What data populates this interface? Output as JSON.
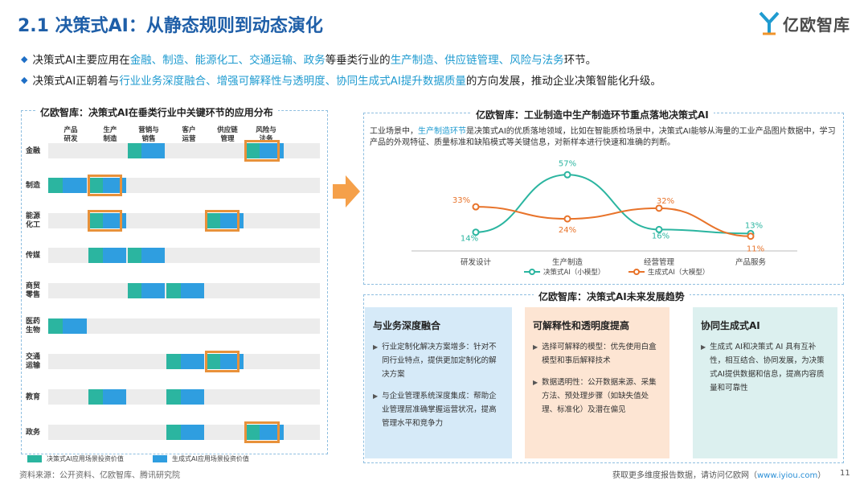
{
  "title": "2.1 决策式AI：从静态规则到动态演化",
  "logo": {
    "text": "亿欧智库"
  },
  "bullets": [
    {
      "parts": [
        {
          "t": "决策式AI主要应用在",
          "hl": false
        },
        {
          "t": "金融、制造、能源化工、交通运输、政务",
          "hl": true
        },
        {
          "t": "等垂类行业的",
          "hl": false
        },
        {
          "t": "生产制造、供应链管理、风险与法务",
          "hl": true
        },
        {
          "t": "环节。",
          "hl": false
        }
      ]
    },
    {
      "parts": [
        {
          "t": "决策式AI正朝着与",
          "hl": false
        },
        {
          "t": "行业业务深度融合、增强可解释性与透明度、协同生成式AI提升数据质量",
          "hl": true
        },
        {
          "t": "的方向发展，推动企业决策智能化升级。",
          "hl": false
        }
      ]
    }
  ],
  "left_panel": {
    "title": "亿欧智库：决策式AI在垂类行业中关键环节的应用分布",
    "columns": [
      "产品\n研发",
      "生产\n制造",
      "营销与\n销售",
      "客户\n运营",
      "供应链\n管理",
      "风险与\n法务"
    ],
    "rows": [
      {
        "label": "金融",
        "cells": [
          "none",
          "none",
          "both",
          "none",
          "none",
          "both"
        ],
        "highlight": [
          5
        ]
      },
      {
        "label": "制造",
        "cells": [
          "both",
          "both",
          "none",
          "none",
          "none",
          "none"
        ],
        "highlight": [
          1
        ]
      },
      {
        "label": "能源\n化工",
        "cells": [
          "none",
          "both",
          "none",
          "none",
          "both",
          "none"
        ],
        "highlight": [
          1,
          4
        ]
      },
      {
        "label": "传媒",
        "cells": [
          "none",
          "both",
          "both",
          "none",
          "none",
          "none"
        ],
        "highlight": []
      },
      {
        "label": "商贸\n零售",
        "cells": [
          "none",
          "none",
          "both",
          "both",
          "none",
          "none"
        ],
        "highlight": []
      },
      {
        "label": "医药\n生物",
        "cells": [
          "both",
          "none",
          "none",
          "none",
          "none",
          "none"
        ],
        "highlight": []
      },
      {
        "label": "交通\n运输",
        "cells": [
          "none",
          "none",
          "none",
          "both",
          "both",
          "none"
        ],
        "highlight": [
          4
        ]
      },
      {
        "label": "教育",
        "cells": [
          "none",
          "both",
          "none",
          "both",
          "none",
          "none"
        ],
        "highlight": []
      },
      {
        "label": "政务",
        "cells": [
          "none",
          "none",
          "none",
          "both",
          "none",
          "both"
        ],
        "highlight": [
          5
        ]
      }
    ],
    "legend": [
      {
        "label": "决策式AI应用场景投资价值",
        "color": "#2bb5a0"
      },
      {
        "label": "生成式AI应用场景投资价值",
        "color": "#2f9ee0"
      }
    ]
  },
  "chart_data": {
    "type": "line",
    "title": "亿欧智库：工业制造中生产制造环节重点落地决策式AI",
    "categories": [
      "研发设计",
      "生产制造",
      "经营管理",
      "产品服务"
    ],
    "series": [
      {
        "name": "决策式AI（小模型）",
        "color": "#2bb5a0",
        "values": [
          14,
          57,
          16,
          13
        ],
        "labels": [
          "14%",
          "57%",
          "16%",
          "13%"
        ]
      },
      {
        "name": "生成式AI（大模型）",
        "color": "#e8732a",
        "values": [
          33,
          24,
          32,
          11
        ],
        "labels": [
          "33%",
          "24%",
          "32%",
          "11%"
        ]
      }
    ],
    "ylim": [
      0,
      65
    ],
    "grid": false,
    "legend": "bottom"
  },
  "chart_desc": {
    "parts": [
      {
        "t": "工业场景中，",
        "hl": false
      },
      {
        "t": "生产制造环节",
        "hl": true
      },
      {
        "t": "是决策式AI的优质落地领域，比如在智能质检场景中，决策式AI能够从海量的工业产品图片数据中，学习产品的外观特征、质量标准和缺陷模式等关键信息，对新样本进行快速和准确的判断。",
        "hl": false
      }
    ]
  },
  "trends": {
    "title": "亿欧智库：决策式AI未来发展趋势",
    "cards": [
      {
        "title": "与业务深度融合",
        "bg": "#d6eaf8",
        "items": [
          "行业定制化解决方案增多：针对不同行业特点，提供更加定制化的解决方案",
          "与企业管理系统深度集成：帮助企业管理层准确掌握运营状况，提高管理水平和竞争力"
        ]
      },
      {
        "title": "可解释性和透明度提高",
        "bg": "#fde5d3",
        "items": [
          "选择可解释的模型：优先使用白盒模型和事后解释技术",
          "数据透明性：公开数据来源、采集方法、预处理步骤（如缺失值处理、标准化）及潜在偏见"
        ]
      },
      {
        "title": "协同生成式AI",
        "bg": "#dcf0ef",
        "items": [
          "生成式 AI和决策式 AI 具有互补性，相互结合、协同发展，为决策式AI提供数据和信息，提高内容质量和可靠性"
        ]
      }
    ]
  },
  "source": "资料来源：公开资料、亿欧智库、腾讯研究院",
  "footer": {
    "text": "获取更多维度报告数据，请访问亿欧网（",
    "link": "www.iyiou.com",
    "end": "）"
  },
  "page_number": "11"
}
